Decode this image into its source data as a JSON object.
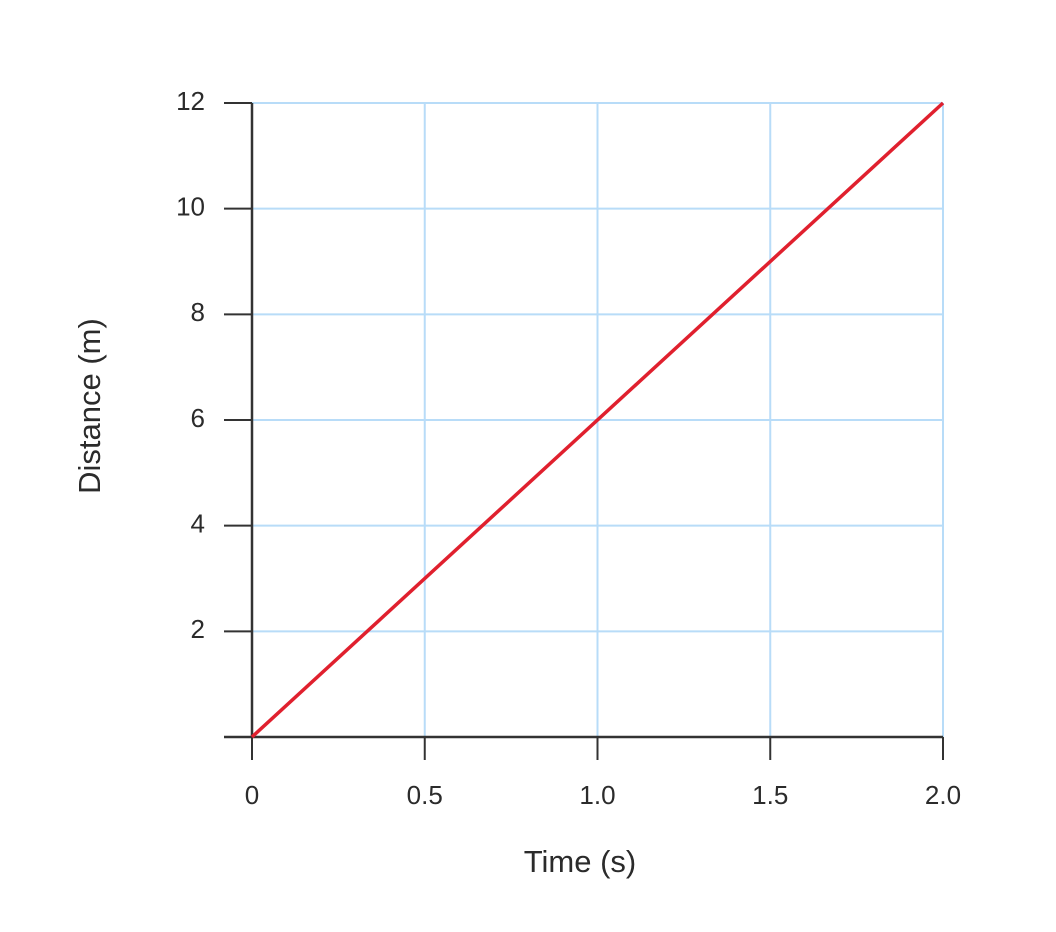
{
  "chart_data": {
    "type": "line",
    "x_label": "Time (s)",
    "y_label": "Distance (m)",
    "x": [
      0,
      2
    ],
    "series": [
      {
        "color": "#e0202e",
        "values": [
          0,
          12
        ]
      }
    ],
    "xlim": [
      0,
      2
    ],
    "xticks": [
      0,
      0.5,
      {
        "value": 1,
        "label": "1.0"
      },
      1.5,
      {
        "value": 2,
        "label": "2.0"
      }
    ],
    "ylim": [
      0,
      12
    ],
    "yticks": [
      2,
      4,
      6,
      8,
      10,
      12
    ],
    "grid": true
  }
}
